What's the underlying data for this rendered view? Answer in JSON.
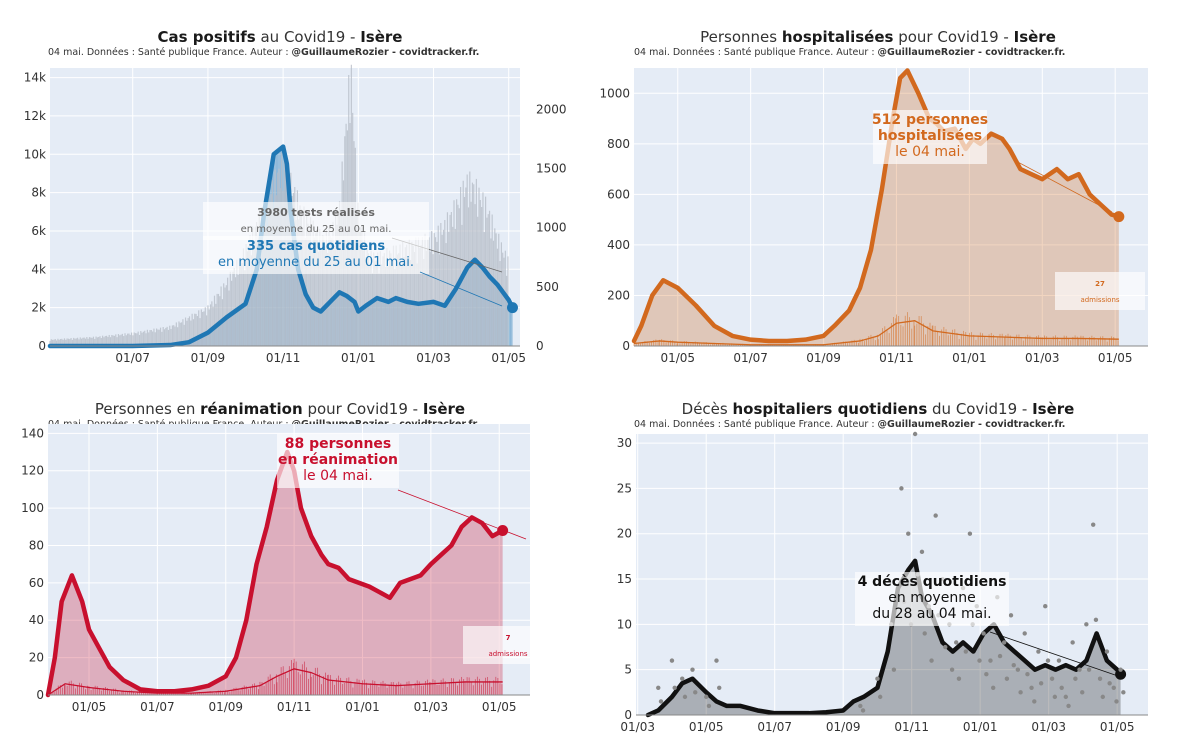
{
  "colors": {
    "plot_bg": "#e5ecf6",
    "blue": "#1f77b4",
    "orange": "#d2691e",
    "red": "#c8102e",
    "black": "#111111",
    "grey_bars": "#b8bec8"
  },
  "panels": [
    {
      "id": "cas",
      "title": {
        "pre": "",
        "bold": "Cas positifs",
        "mid": " au Covid19 - ",
        "bold2": "Isère"
      },
      "subtitle": {
        "text": "04 mai. Données : Santé publique France. Auteur : ",
        "bold": "@GuillaumeRozier - covidtracker.fr."
      },
      "annotation_tests": {
        "line1": "3980 tests réalisés",
        "line2": "en moyenne du 25 au 01 mai."
      },
      "annotation": {
        "line1": "335 cas quotidiens",
        "line2": "en moyenne du 25 au 01 mai."
      }
    },
    {
      "id": "hosp",
      "title": {
        "pre": "Personnes ",
        "bold": "hospitalisées",
        "mid": " pour Covid19 - ",
        "bold2": "Isère"
      },
      "subtitle": {
        "text": "04 mai. Données : Santé publique France. Auteur : ",
        "bold": "@GuillaumeRozier - covidtracker.fr."
      },
      "annotation": {
        "line1": "512 personnes",
        "line2": "hospitalisées",
        "line3": "le 04 mai."
      },
      "annotation_small": {
        "line1": "27",
        "line2": "admissions"
      }
    },
    {
      "id": "rea",
      "title": {
        "pre": "Personnes en ",
        "bold": "réanimation",
        "mid": " pour Covid19 - ",
        "bold2": "Isère"
      },
      "subtitle": {
        "text": "04 mai. Données : Santé publique France. Auteur : ",
        "bold": "@GuillaumeRozier - covidtracker.fr."
      },
      "annotation": {
        "line1": "88 personnes",
        "line2": "en réanimation",
        "line3": "le 04 mai."
      },
      "annotation_small": {
        "line1": "7",
        "line2": "admissions"
      }
    },
    {
      "id": "deces",
      "title": {
        "pre": "Décès ",
        "bold": "hospitaliers quotidiens",
        "mid": " du Covid19 - ",
        "bold2": "Isère"
      },
      "subtitle": {
        "text": "04 mai. Données : Santé publique France. Auteur : ",
        "bold": "@GuillaumeRozier - covidtracker.fr."
      },
      "annotation": {
        "line1": "4 décès quotidiens",
        "line2": "en moyenne",
        "line3": "du 28 au 04 mai."
      }
    }
  ],
  "chart_data": [
    {
      "type": "line",
      "id": "cas",
      "x_ticks": [
        "01/07",
        "01/09",
        "01/11",
        "01/01",
        "01/03",
        "01/05"
      ],
      "x_tick_index": [
        5,
        7,
        9,
        11,
        13,
        15
      ],
      "x_range_months": [
        2.8,
        15.3
      ],
      "y_ticks": [
        "0",
        "2k",
        "4k",
        "6k",
        "8k",
        "10k",
        "12k",
        "14k"
      ],
      "ylim": [
        0,
        14500
      ],
      "y2_ticks": [
        "0",
        "500",
        "1000",
        "1500",
        "2000"
      ],
      "y2lim": [
        0,
        2350
      ],
      "series": [
        {
          "kind": "line",
          "axis": "y",
          "color": "blue",
          "x": [
            2.8,
            4,
            5,
            6,
            6.5,
            7,
            7.5,
            8,
            8.3,
            8.5,
            8.75,
            9,
            9.1,
            9.2,
            9.4,
            9.6,
            9.8,
            10,
            10.3,
            10.5,
            10.7,
            10.9,
            11,
            11.2,
            11.5,
            11.8,
            12,
            12.3,
            12.6,
            13,
            13.3,
            13.6,
            13.9,
            14.1,
            14.3,
            14.5,
            14.7,
            15,
            15.1
          ],
          "y": [
            0,
            0,
            0,
            50,
            200,
            700,
            1500,
            2200,
            4000,
            7000,
            10000,
            10400,
            9500,
            7000,
            4000,
            2700,
            2000,
            1800,
            2400,
            2800,
            2600,
            2300,
            1800,
            2100,
            2500,
            2300,
            2500,
            2300,
            2200,
            2300,
            2100,
            3000,
            4100,
            4500,
            4100,
            3600,
            3200,
            2400,
            2000
          ]
        },
        {
          "kind": "bars",
          "axis": "y",
          "color": "blue",
          "note": "same daily cases as bars under the line"
        },
        {
          "kind": "bars",
          "axis": "y2",
          "color": "grey_bars",
          "x": [
            2.8,
            4,
            5,
            6,
            7,
            7.5,
            8,
            8.5,
            9,
            9.5,
            10,
            10.3,
            10.5,
            10.8,
            11,
            11.3,
            11.6,
            12,
            12.5,
            13,
            13.3,
            13.6,
            13.9,
            14.1,
            14.4,
            14.7,
            15
          ],
          "y": [
            50,
            70,
            100,
            150,
            300,
            500,
            750,
            1100,
            1450,
            1050,
            850,
            900,
            1100,
            2200,
            1000,
            700,
            700,
            750,
            800,
            850,
            950,
            1100,
            1300,
            1250,
            1100,
            850,
            650
          ]
        }
      ]
    },
    {
      "type": "area",
      "id": "hosp",
      "x_ticks": [
        "01/05",
        "01/07",
        "01/09",
        "01/11",
        "01/01",
        "01/03",
        "01/05"
      ],
      "x_tick_index": [
        5,
        7,
        9,
        11,
        13,
        15,
        17
      ],
      "x_range_months": [
        3.8,
        17.9
      ],
      "y_ticks": [
        "0",
        "200",
        "400",
        "600",
        "800",
        "1000"
      ],
      "ylim": [
        0,
        1100
      ],
      "series": [
        {
          "kind": "area_line",
          "color": "orange",
          "x": [
            3.8,
            4,
            4.3,
            4.6,
            5,
            5.5,
            6,
            6.5,
            7,
            7.5,
            8,
            8.5,
            9,
            9.3,
            9.7,
            10,
            10.3,
            10.6,
            10.9,
            11.1,
            11.3,
            11.6,
            11.9,
            12.1,
            12.3,
            12.6,
            12.9,
            13.1,
            13.3,
            13.6,
            13.9,
            14.1,
            14.4,
            14.7,
            15,
            15.2,
            15.4,
            15.7,
            16,
            16.3,
            16.6,
            16.9,
            17.1
          ],
          "y": [
            20,
            80,
            200,
            260,
            230,
            160,
            80,
            40,
            25,
            20,
            20,
            25,
            40,
            80,
            140,
            230,
            380,
            620,
            900,
            1060,
            1090,
            1000,
            900,
            880,
            850,
            860,
            780,
            820,
            800,
            840,
            820,
            780,
            700,
            680,
            660,
            680,
            700,
            660,
            680,
            600,
            560,
            520,
            512
          ]
        },
        {
          "kind": "line_thin",
          "color": "orange",
          "x": [
            3.8,
            4.5,
            5,
            6,
            7,
            8,
            9,
            10,
            10.5,
            11,
            11.5,
            12,
            13,
            14,
            15,
            16,
            17.1
          ],
          "y": [
            10,
            20,
            15,
            10,
            5,
            5,
            5,
            20,
            40,
            90,
            100,
            60,
            40,
            35,
            30,
            30,
            27
          ]
        }
      ]
    },
    {
      "type": "area",
      "id": "rea",
      "x_ticks": [
        "01/05",
        "01/07",
        "01/09",
        "01/11",
        "01/01",
        "01/03",
        "01/05"
      ],
      "x_tick_index": [
        5,
        7,
        9,
        11,
        13,
        15,
        17
      ],
      "x_range_months": [
        3.8,
        17.9
      ],
      "y_ticks": [
        "0",
        "20",
        "40",
        "60",
        "80",
        "100",
        "120",
        "140"
      ],
      "ylim": [
        0,
        145
      ],
      "series": [
        {
          "kind": "area_line",
          "color": "red",
          "x": [
            3.8,
            4,
            4.2,
            4.5,
            4.8,
            5,
            5.3,
            5.6,
            6,
            6.5,
            7,
            7.5,
            8,
            8.5,
            9,
            9.3,
            9.6,
            9.9,
            10.2,
            10.5,
            10.8,
            11,
            11.2,
            11.5,
            11.8,
            12,
            12.3,
            12.6,
            12.9,
            13.2,
            13.5,
            13.8,
            14.1,
            14.4,
            14.7,
            15,
            15.3,
            15.6,
            15.9,
            16.2,
            16.5,
            16.8,
            17.1
          ],
          "y": [
            0,
            20,
            50,
            64,
            50,
            35,
            25,
            15,
            8,
            3,
            2,
            2,
            3,
            5,
            10,
            20,
            40,
            70,
            90,
            115,
            130,
            120,
            100,
            85,
            75,
            70,
            68,
            62,
            60,
            58,
            55,
            52,
            60,
            62,
            64,
            70,
            75,
            80,
            90,
            95,
            92,
            85,
            88
          ]
        },
        {
          "kind": "line_thin",
          "color": "red",
          "x": [
            3.8,
            4.3,
            5,
            6,
            7,
            8,
            9,
            10,
            10.5,
            11,
            11.5,
            12,
            13,
            14,
            15,
            16,
            17.1
          ],
          "y": [
            0,
            6,
            4,
            2,
            1,
            1,
            2,
            5,
            10,
            14,
            12,
            8,
            6,
            5,
            6,
            7,
            7
          ]
        }
      ]
    },
    {
      "type": "line",
      "id": "deces",
      "x_ticks": [
        "01/03",
        "01/05",
        "01/07",
        "01/09",
        "01/11",
        "01/01",
        "01/03",
        "01/05"
      ],
      "x_tick_index": [
        3,
        5,
        7,
        9,
        11,
        13,
        15,
        17
      ],
      "x_range_months": [
        2.95,
        17.9
      ],
      "y_ticks": [
        "0",
        "5",
        "10",
        "15",
        "20",
        "25",
        "30"
      ],
      "ylim": [
        0,
        31
      ],
      "series": [
        {
          "kind": "area_line",
          "color": "black",
          "x": [
            3.3,
            3.6,
            4,
            4.3,
            4.6,
            5,
            5.3,
            5.6,
            6,
            6.5,
            7,
            7.5,
            8,
            8.5,
            9,
            9.3,
            9.6,
            10,
            10.3,
            10.6,
            10.9,
            11.1,
            11.3,
            11.6,
            11.9,
            12.2,
            12.5,
            12.8,
            13.1,
            13.4,
            13.7,
            14,
            14.3,
            14.6,
            14.9,
            15.2,
            15.5,
            15.8,
            16.1,
            16.4,
            16.7,
            17,
            17.1
          ],
          "y": [
            0,
            0.5,
            2,
            3.5,
            4,
            2.5,
            1.5,
            1,
            1,
            0.5,
            0.2,
            0.2,
            0.2,
            0.3,
            0.5,
            1.5,
            2,
            3,
            7,
            14,
            16,
            17,
            13,
            11,
            8,
            7,
            8,
            7,
            9,
            10,
            8,
            7,
            6,
            5,
            5.5,
            5,
            5.5,
            5,
            6,
            9,
            6,
            5,
            4.5
          ]
        },
        {
          "kind": "scatter",
          "color": "grey_bars",
          "x": [
            3.6,
            4,
            4.3,
            4.6,
            5,
            5.3,
            9.5,
            10,
            10.4,
            10.7,
            10.9,
            11.1,
            11.3,
            11.5,
            11.7,
            11.9,
            12.1,
            12.3,
            12.5,
            12.7,
            12.9,
            13.1,
            13.3,
            13.5,
            13.7,
            13.9,
            14.1,
            14.3,
            14.5,
            14.7,
            14.9,
            15.1,
            15.3,
            15.5,
            15.7,
            15.9,
            16.1,
            16.3,
            16.5,
            16.7,
            16.9,
            17.1
          ],
          "y": [
            3,
            6,
            4,
            5,
            2,
            6,
            1,
            4,
            10,
            25,
            20,
            31,
            18,
            12,
            22,
            15,
            10,
            8,
            14,
            20,
            12,
            9,
            6,
            13,
            8,
            11,
            5,
            9,
            3,
            7,
            12,
            4,
            6,
            2,
            8,
            5,
            10,
            21,
            4,
            7,
            3,
            5
          ]
        }
      ]
    }
  ]
}
